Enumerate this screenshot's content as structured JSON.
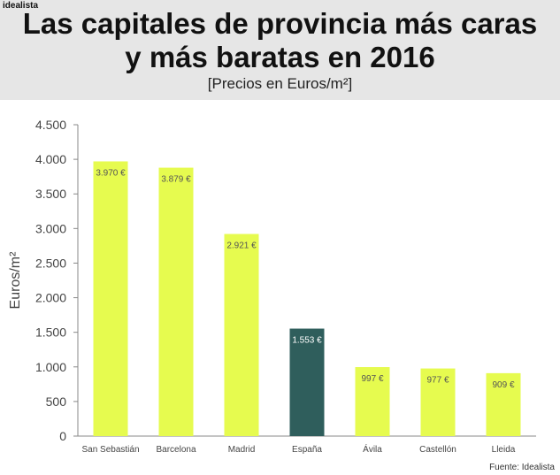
{
  "brand": "idealista",
  "title_line1": "Las capitales de provincia más caras",
  "title_line2": "y más baratas en 2016",
  "subtitle": "[Precios en Euros/m²]",
  "source": "Fuente: Idealista",
  "colors": {
    "bar": "#e6fb4f",
    "highlight": "#2f5e5c",
    "axis": "#888888",
    "header_bg": "#e6e6e6"
  },
  "chart_data": {
    "type": "bar",
    "ylabel": "Euros/m²",
    "ylim": [
      0,
      4500
    ],
    "yticks": [
      0,
      500,
      1000,
      1500,
      2000,
      2500,
      3000,
      3500,
      4000,
      4500
    ],
    "ytick_labels": [
      "0",
      "500",
      "1.000",
      "1.500",
      "2.000",
      "2.500",
      "3.000",
      "3.500",
      "4.000",
      "4.500"
    ],
    "categories": [
      "San Sebastián",
      "Barcelona",
      "Madrid",
      "España",
      "Ávila",
      "Castellón",
      "Lleida"
    ],
    "values": [
      3970,
      3879,
      2921,
      1553,
      997,
      977,
      909
    ],
    "data_labels": [
      "3.970 €",
      "3.879 €",
      "2.921 €",
      "1.553 €",
      "997 €",
      "977 €",
      "909 €"
    ],
    "highlight_index": 3,
    "grid": false
  }
}
